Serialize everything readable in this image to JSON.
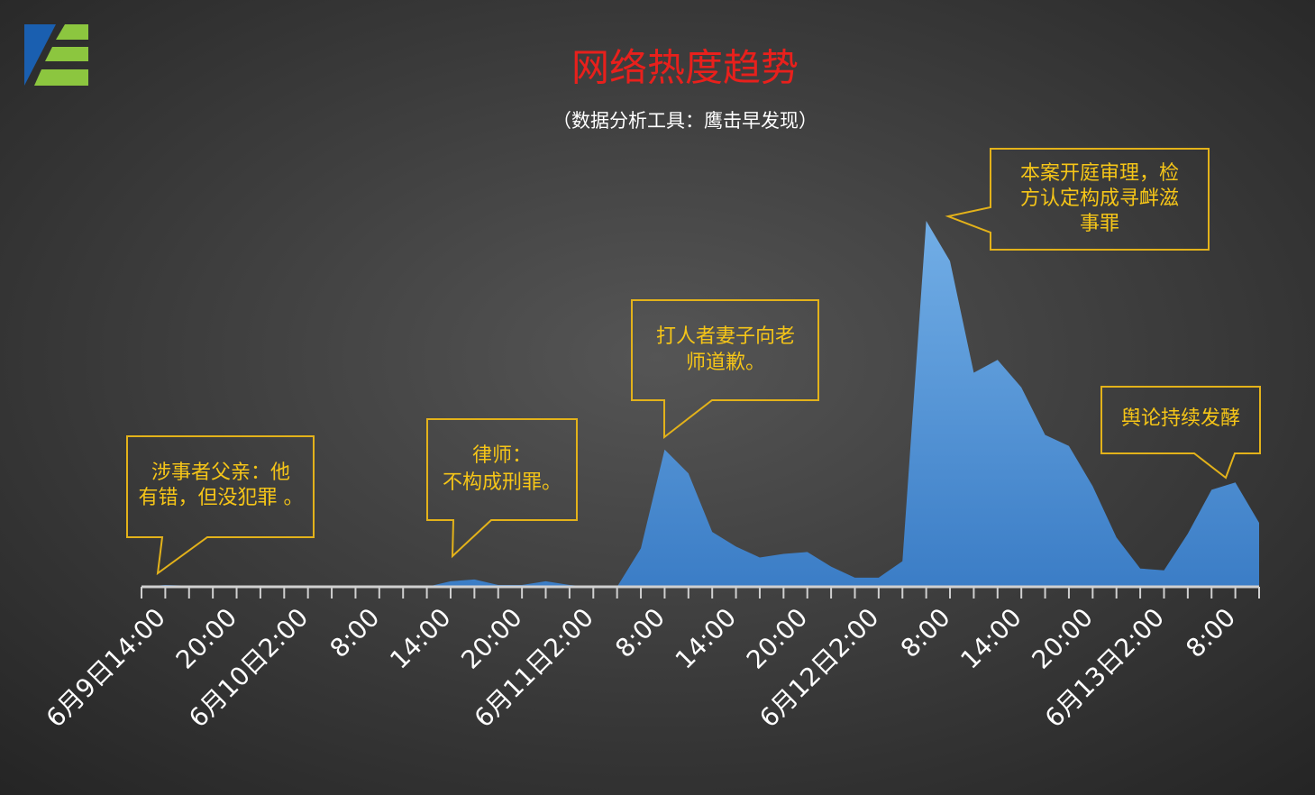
{
  "chart_data": {
    "type": "area",
    "title": "网络热度趋势",
    "subtitle": "（数据分析工具：鹰击早发现）",
    "categories": [
      null,
      "6月9日14:00",
      null,
      null,
      "20:00",
      null,
      null,
      "6月10日2:00",
      null,
      null,
      "8:00",
      null,
      null,
      "14:00",
      null,
      null,
      "20:00",
      null,
      null,
      "6月11日2:00",
      null,
      null,
      "8:00",
      null,
      null,
      "14:00",
      null,
      null,
      "20:00",
      null,
      null,
      "6月12日2:00",
      null,
      null,
      "8:00",
      null,
      null,
      "14:00",
      null,
      null,
      "20:00",
      null,
      null,
      "6月13日2:00",
      null,
      null,
      "8:00",
      null
    ],
    "values": [
      0,
      0.5,
      0.3,
      0,
      0,
      0,
      0,
      0,
      0,
      0,
      0,
      0,
      0,
      1.5,
      2,
      0.5,
      0.5,
      1.5,
      0.5,
      0,
      0,
      10.5,
      37.5,
      31,
      15,
      11,
      8,
      9,
      9.5,
      5.5,
      2.5,
      2.5,
      7,
      100,
      89,
      58.5,
      62,
      54.5,
      41.5,
      38.5,
      27.5,
      13.5,
      5,
      4.5,
      14.5,
      26.5,
      28.5,
      17.5
    ],
    "color": "#4a8fd8",
    "ylim": [
      0,
      100
    ],
    "annotations": [
      {
        "text": [
          "涉事者父亲：他",
          "有错，但没犯罪 。"
        ]
      },
      {
        "text": [
          "律师：",
          "不构成刑罪。"
        ]
      },
      {
        "text": [
          "打人者妻子向老",
          "师道歉。"
        ]
      },
      {
        "text": [
          "本案开庭审理，检",
          "方认定构成寻衅滋",
          "事罪"
        ]
      },
      {
        "text": [
          "舆论持续发酵"
        ]
      }
    ]
  }
}
